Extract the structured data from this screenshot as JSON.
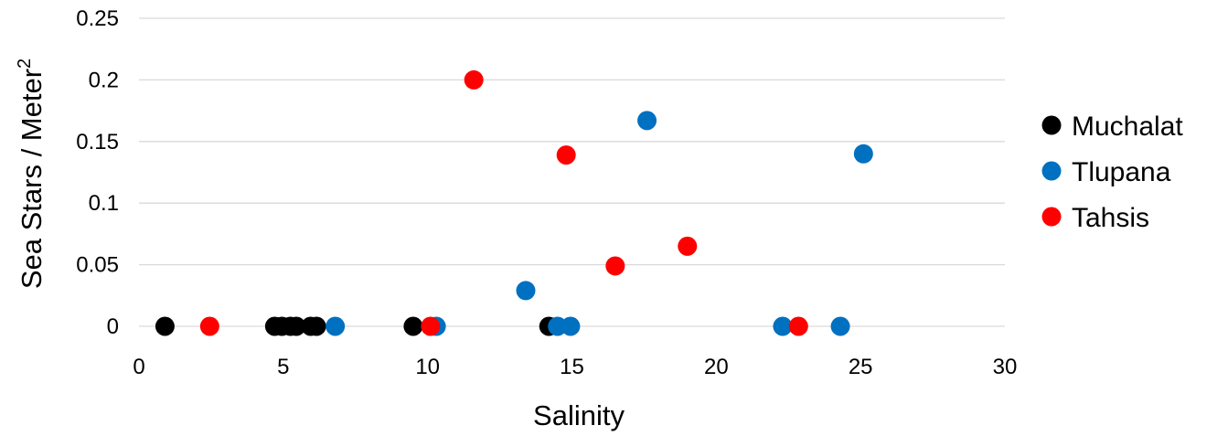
{
  "chart_data": {
    "type": "scatter",
    "title": "",
    "xlabel": "Salinity",
    "ylabel": "Sea Stars / Meter",
    "ylabel_superscript": "2",
    "xlim": [
      0,
      30
    ],
    "ylim": [
      0,
      0.25
    ],
    "x_ticks": [
      "0",
      "5",
      "10",
      "15",
      "20",
      "25",
      "30"
    ],
    "y_ticks": [
      "0",
      "0.05",
      "0.1",
      "0.15",
      "0.2",
      "0.25"
    ],
    "grid": "horizontal",
    "legend_position": "right",
    "series": [
      {
        "name": "Muchalat",
        "color": "#000000",
        "points": [
          {
            "x": 0.9,
            "y": 0
          },
          {
            "x": 4.7,
            "y": 0
          },
          {
            "x": 4.95,
            "y": 0
          },
          {
            "x": 5.25,
            "y": 0
          },
          {
            "x": 5.45,
            "y": 0
          },
          {
            "x": 5.95,
            "y": 0
          },
          {
            "x": 6.15,
            "y": 0
          },
          {
            "x": 9.5,
            "y": 0
          },
          {
            "x": 14.2,
            "y": 0
          }
        ]
      },
      {
        "name": "Tlupana",
        "color": "#0070c0",
        "points": [
          {
            "x": 6.8,
            "y": 0
          },
          {
            "x": 10.3,
            "y": 0
          },
          {
            "x": 13.4,
            "y": 0.029
          },
          {
            "x": 14.5,
            "y": 0
          },
          {
            "x": 14.95,
            "y": 0
          },
          {
            "x": 17.6,
            "y": 0.167
          },
          {
            "x": 22.3,
            "y": 0
          },
          {
            "x": 24.3,
            "y": 0
          },
          {
            "x": 25.1,
            "y": 0.14
          }
        ]
      },
      {
        "name": "Tahsis",
        "color": "#ff0000",
        "points": [
          {
            "x": 2.45,
            "y": 0
          },
          {
            "x": 10.1,
            "y": 0
          },
          {
            "x": 11.6,
            "y": 0.2
          },
          {
            "x": 14.8,
            "y": 0.139
          },
          {
            "x": 16.5,
            "y": 0.049
          },
          {
            "x": 19.0,
            "y": 0.065
          },
          {
            "x": 22.85,
            "y": 0
          }
        ]
      }
    ]
  }
}
